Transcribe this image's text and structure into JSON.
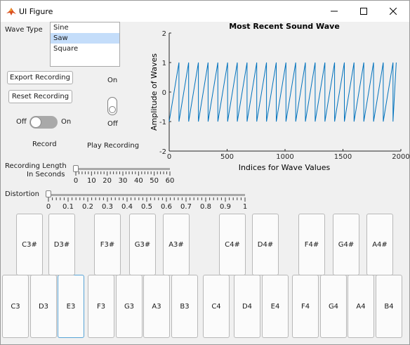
{
  "window": {
    "title": "UI Figure",
    "minimize_icon": "minimize-icon",
    "maximize_icon": "maximize-icon",
    "close_icon": "close-icon"
  },
  "wave_type": {
    "label": "Wave Type",
    "options": [
      "Sine",
      "Saw",
      "Square"
    ],
    "selected": "Saw"
  },
  "buttons": {
    "export": "Export Recording",
    "reset": "Reset Recording"
  },
  "record_switch": {
    "off_label": "Off",
    "on_label": "On",
    "caption": "Record",
    "state": "Off"
  },
  "play_switch": {
    "on_label": "On",
    "off_label": "Off",
    "caption": "Play Recording",
    "state": "Off"
  },
  "recording_length": {
    "label_line1": "Recording Length",
    "label_line2": "In Seconds",
    "min": 0,
    "max": 60,
    "value": 0,
    "tick_labels": [
      "0",
      "10",
      "20",
      "30",
      "40",
      "50",
      "60"
    ]
  },
  "distortion": {
    "label": "Distortion",
    "min": 0,
    "max": 1,
    "value": 0,
    "tick_labels": [
      "0",
      "0.1",
      "0.2",
      "0.3",
      "0.4",
      "0.5",
      "0.6",
      "0.7",
      "0.8",
      "0.9",
      "1"
    ]
  },
  "chart_data": {
    "type": "line",
    "title": "Most Recent Sound Wave",
    "xlabel": "Indices for Wave Values",
    "ylabel": "Amplitude of Waves",
    "xlim": [
      0,
      2000
    ],
    "ylim": [
      -2,
      2
    ],
    "xticks": [
      "0",
      "500",
      "1000",
      "1500",
      "2000"
    ],
    "yticks": [
      "-2",
      "-1",
      "0",
      "1",
      "2"
    ],
    "grid": false,
    "series": [
      {
        "waveform": "sawtooth",
        "period": 84,
        "min": -1,
        "max": 1,
        "x_start": 0,
        "x_end": 1960,
        "color": "#0072bd"
      }
    ]
  },
  "piano": {
    "white_keys": [
      "C3",
      "D3",
      "E3",
      "F3",
      "G3",
      "A3",
      "B3",
      "C4",
      "D4",
      "E4",
      "F4",
      "G4",
      "A4",
      "B4"
    ],
    "black_keys": [
      "C3#",
      "D3#",
      "F3#",
      "G3#",
      "A3#",
      "C4#",
      "D4#",
      "F4#",
      "G4#",
      "A4#"
    ],
    "focused_key": "E3"
  }
}
